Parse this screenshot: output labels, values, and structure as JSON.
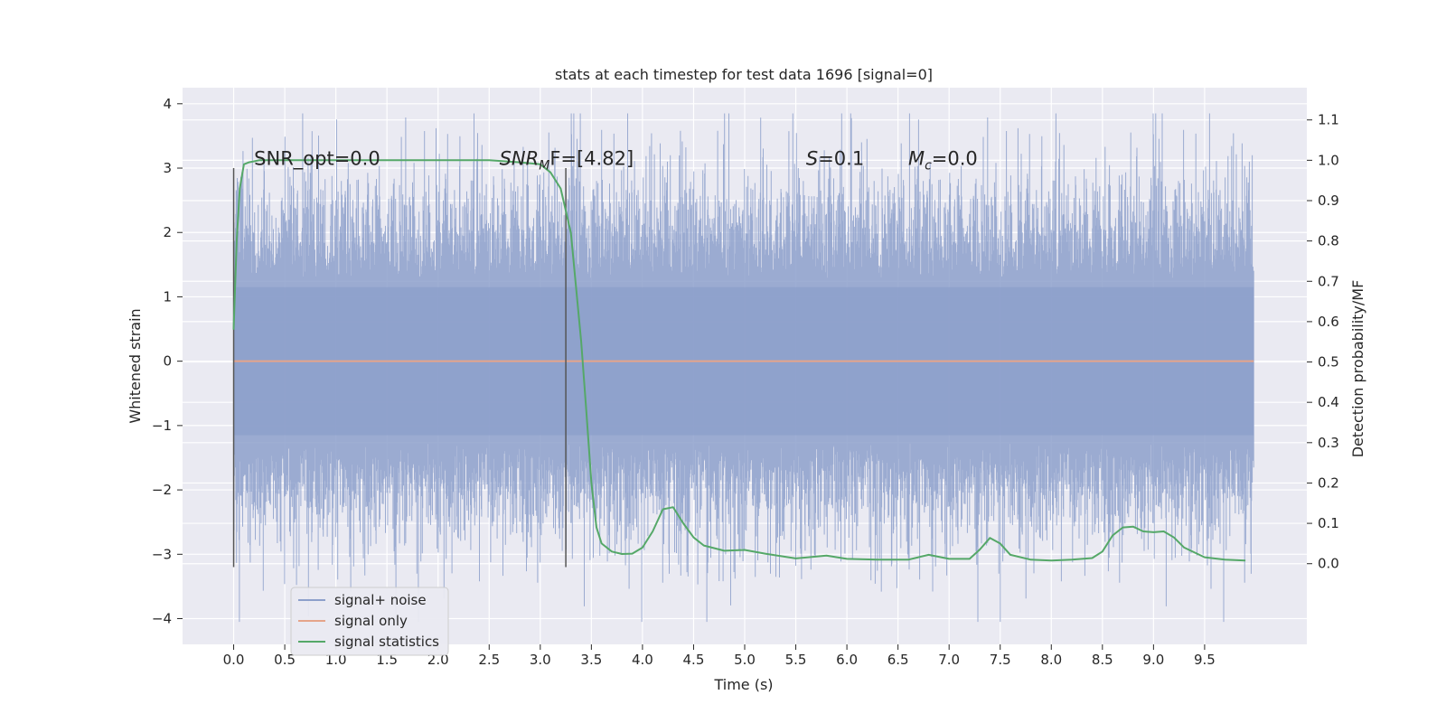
{
  "chart_data": {
    "type": "line",
    "title": "stats at each timestep for test data 1696 [signal=0]",
    "xlabel": "Time (s)",
    "ylabel_left": "Whitened strain",
    "ylabel_right": "Detection probability/MF",
    "xlim": [
      -0.5,
      10.5
    ],
    "ylim_left": [
      -4.4,
      4.25
    ],
    "ylim_right": [
      -0.2,
      1.18
    ],
    "x_ticks": [
      0.0,
      0.5,
      1.0,
      1.5,
      2.0,
      2.5,
      3.0,
      3.5,
      4.0,
      4.5,
      5.0,
      5.5,
      6.0,
      6.5,
      7.0,
      7.5,
      8.0,
      8.5,
      9.0,
      9.5
    ],
    "x_tick_labels": [
      "0.0",
      "0.5",
      "1.0",
      "1.5",
      "2.0",
      "2.5",
      "3.0",
      "3.5",
      "4.0",
      "4.5",
      "5.0",
      "5.5",
      "6.0",
      "6.5",
      "7.0",
      "7.5",
      "8.0",
      "8.5",
      "9.0",
      "9.5"
    ],
    "y_left_ticks": [
      -4,
      -3,
      -2,
      -1,
      0,
      1,
      2,
      3,
      4
    ],
    "y_left_tick_labels": [
      "−4",
      "−3",
      "−2",
      "−1",
      "0",
      "1",
      "2",
      "3",
      "4"
    ],
    "y_right_ticks": [
      0.0,
      0.1,
      0.2,
      0.3,
      0.4,
      0.5,
      0.6,
      0.7,
      0.8,
      0.9,
      1.0,
      1.1
    ],
    "y_right_tick_labels": [
      "0.0",
      "0.1",
      "0.2",
      "0.3",
      "0.4",
      "0.5",
      "0.6",
      "0.7",
      "0.8",
      "0.9",
      "1.0",
      "1.1"
    ],
    "grid": true,
    "legend_position": "lower-left",
    "series": [
      {
        "name": "signal+ noise",
        "axis": "left",
        "color": "#8da0cb",
        "style": "dense noise trace",
        "x_range": [
          0.0,
          9.98
        ],
        "approx_envelope": [
          -4.05,
          3.85
        ]
      },
      {
        "name": "signal only",
        "axis": "left",
        "color": "#e5a48a",
        "x": [
          0.0,
          9.98
        ],
        "y": [
          0.0,
          0.0
        ]
      },
      {
        "name": "signal statistics",
        "axis": "right",
        "color": "#55a868",
        "x": [
          0.0,
          0.03,
          0.06,
          0.1,
          0.15,
          0.25,
          0.5,
          1.0,
          1.5,
          2.0,
          2.5,
          2.8,
          3.0,
          3.1,
          3.2,
          3.3,
          3.4,
          3.45,
          3.5,
          3.55,
          3.6,
          3.7,
          3.8,
          3.9,
          4.0,
          4.1,
          4.2,
          4.3,
          4.4,
          4.5,
          4.6,
          4.8,
          5.0,
          5.2,
          5.5,
          5.8,
          6.0,
          6.3,
          6.6,
          6.8,
          7.0,
          7.2,
          7.3,
          7.4,
          7.5,
          7.6,
          7.8,
          8.0,
          8.2,
          8.4,
          8.5,
          8.6,
          8.7,
          8.8,
          8.9,
          9.0,
          9.1,
          9.2,
          9.3,
          9.5,
          9.7,
          9.9
        ],
        "y": [
          0.58,
          0.8,
          0.93,
          0.99,
          0.995,
          1.0,
          1.0,
          1.0,
          1.0,
          1.0,
          1.0,
          0.995,
          0.99,
          0.97,
          0.93,
          0.82,
          0.55,
          0.38,
          0.2,
          0.09,
          0.05,
          0.03,
          0.024,
          0.025,
          0.04,
          0.08,
          0.135,
          0.14,
          0.1,
          0.065,
          0.045,
          0.032,
          0.034,
          0.025,
          0.013,
          0.02,
          0.012,
          0.01,
          0.01,
          0.022,
          0.012,
          0.012,
          0.035,
          0.064,
          0.05,
          0.022,
          0.01,
          0.008,
          0.01,
          0.014,
          0.03,
          0.07,
          0.09,
          0.092,
          0.08,
          0.078,
          0.08,
          0.065,
          0.04,
          0.016,
          0.01,
          0.008
        ]
      }
    ],
    "vertical_markers": [
      {
        "x": 0.0,
        "y_range": [
          -3.2,
          3.0
        ]
      },
      {
        "x": 3.25,
        "y_range": [
          -3.2,
          3.0
        ]
      }
    ],
    "annotations": [
      {
        "x": 0.2,
        "y": 3.05,
        "text": "SNR_opt=0.0"
      },
      {
        "x": 2.6,
        "y": 3.05,
        "parts": [
          "SNR",
          "M",
          "F=[4.82]"
        ]
      },
      {
        "x": 5.6,
        "y": 3.05,
        "parts": [
          "S",
          "=0.1"
        ]
      },
      {
        "x": 6.6,
        "y": 3.05,
        "parts": [
          "M",
          "c",
          "=0.0"
        ]
      }
    ]
  }
}
